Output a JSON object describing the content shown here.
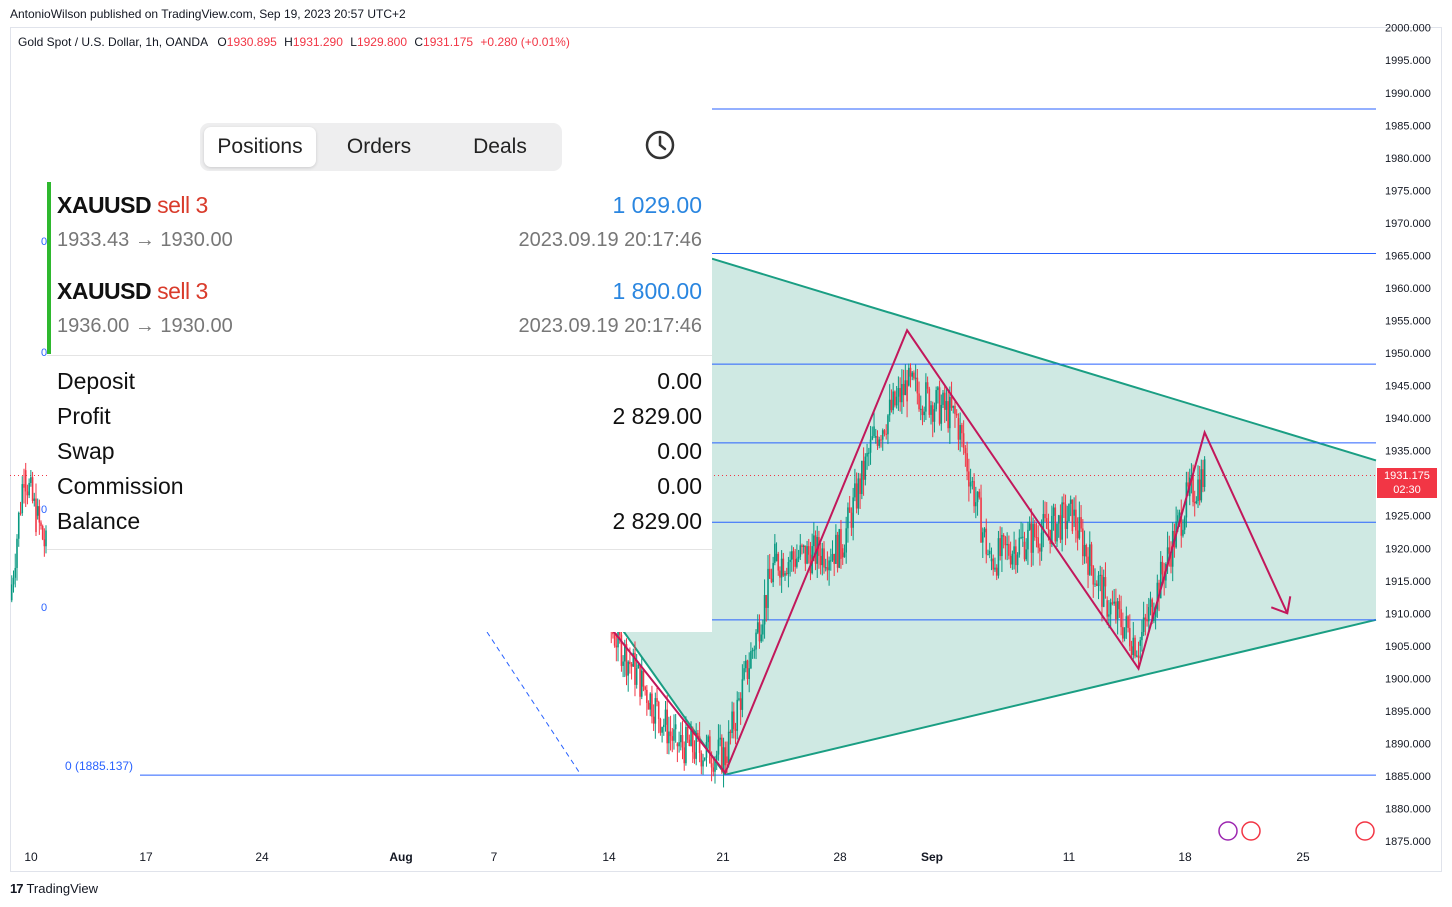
{
  "header": {
    "published": "AntonioWilson published on TradingView.com, Sep 19, 2023 20:57 UTC+2"
  },
  "legend": {
    "symbol": "Gold Spot / U.S. Dollar, 1h, OANDA",
    "o_label": "O",
    "o": "1930.895",
    "h_label": "H",
    "h": "1931.290",
    "l_label": "L",
    "l": "1929.800",
    "c_label": "C",
    "c": "1931.175",
    "change": "+0.280 (+0.01%)"
  },
  "price_tag": {
    "price": "1931.175",
    "countdown": "02:30"
  },
  "fib": {
    "label": "0 (1885.137)"
  },
  "left_zero_labels": [
    "0",
    "0",
    "0",
    "0"
  ],
  "footer": {
    "brand": "TradingView",
    "logo": "17"
  },
  "colors": {
    "up": "#089981",
    "down": "#f23645",
    "triangle": "#1a9e83",
    "triangle_fill": "#cfe9e3",
    "zigzag": "#c2185b",
    "hline": "#2962ff",
    "profit_blue": "#2a86e0",
    "sell_red": "#d93b2b",
    "green_bar": "#2eb82e"
  },
  "overlay": {
    "tabs": [
      "Positions",
      "Orders",
      "Deals"
    ],
    "active_tab": "Positions",
    "history_icon": "clock-icon",
    "positions": [
      {
        "symbol": "XAUUSD",
        "side": "sell 3",
        "profit": "1 029.00",
        "prices": "1933.43 → 1930.00",
        "time": "2023.09.19 20:17:46"
      },
      {
        "symbol": "XAUUSD",
        "side": "sell 3",
        "profit": "1 800.00",
        "prices": "1936.00 → 1930.00",
        "time": "2023.09.19 20:17:46"
      }
    ],
    "summary": [
      {
        "label": "Deposit",
        "value": "0.00"
      },
      {
        "label": "Profit",
        "value": "2 829.00"
      },
      {
        "label": "Swap",
        "value": "0.00"
      },
      {
        "label": "Commission",
        "value": "0.00"
      },
      {
        "label": "Balance",
        "value": "2 829.00"
      }
    ]
  },
  "chart_data": {
    "type": "candlestick",
    "symbol": "XAUUSD",
    "timeframe": "1h",
    "y_ticks": [
      "1875.000",
      "1880.000",
      "1885.000",
      "1890.000",
      "1895.000",
      "1900.000",
      "1905.000",
      "1910.000",
      "1915.000",
      "1920.000",
      "1925.000",
      "1930.000",
      "1935.000",
      "1940.000",
      "1945.000",
      "1950.000",
      "1955.000",
      "1960.000",
      "1965.000",
      "1970.000",
      "1975.000",
      "1980.000",
      "1985.000",
      "1990.000",
      "1995.000",
      "2000.000"
    ],
    "ylim": [
      1875,
      2000
    ],
    "x_ticks": [
      "10",
      "17",
      "24",
      "Aug",
      "7",
      "14",
      "21",
      "28",
      "Sep",
      "11",
      "18",
      "25"
    ],
    "horizontal_levels": [
      1987.5,
      1965.3,
      1948.3,
      1936.2,
      1924.0,
      1909.0,
      1885.137
    ],
    "triangle": {
      "upper": [
        {
          "x": "Aug 18",
          "y": 1964.5
        },
        {
          "x": "Sep 25",
          "y": 1933.5
        }
      ],
      "lower": [
        {
          "x": "Aug 21",
          "y": 1885.2
        },
        {
          "x": "Sep 25",
          "y": 1909.0
        }
      ]
    },
    "zigzag": [
      {
        "x": "Aug 14",
        "y": 1908
      },
      {
        "x": "Aug 21",
        "y": 1885.5
      },
      {
        "x": "Sep 1",
        "y": 1953.5
      },
      {
        "x": "Sep 15",
        "y": 1901.5
      },
      {
        "x": "Sep 19",
        "y": 1937.8
      },
      {
        "x": "Sep 24",
        "y": 1910.0
      }
    ],
    "candles_approx": [
      {
        "x": "Jul 10",
        "close": 1925
      },
      {
        "x": "Aug 14",
        "close": 1908
      },
      {
        "x": "Aug 18",
        "close": 1890
      },
      {
        "x": "Aug 21",
        "close": 1888
      },
      {
        "x": "Aug 24",
        "close": 1918
      },
      {
        "x": "Aug 28",
        "close": 1920
      },
      {
        "x": "Aug 30",
        "close": 1937
      },
      {
        "x": "Sep 1",
        "close": 1945
      },
      {
        "x": "Sep 4",
        "close": 1940
      },
      {
        "x": "Sep 6",
        "close": 1918
      },
      {
        "x": "Sep 8",
        "close": 1921
      },
      {
        "x": "Sep 11",
        "close": 1925
      },
      {
        "x": "Sep 13",
        "close": 1912
      },
      {
        "x": "Sep 15",
        "close": 1905
      },
      {
        "x": "Sep 18",
        "close": 1928
      },
      {
        "x": "Sep 19",
        "close": 1931.175
      }
    ],
    "last_price": 1931.175
  }
}
